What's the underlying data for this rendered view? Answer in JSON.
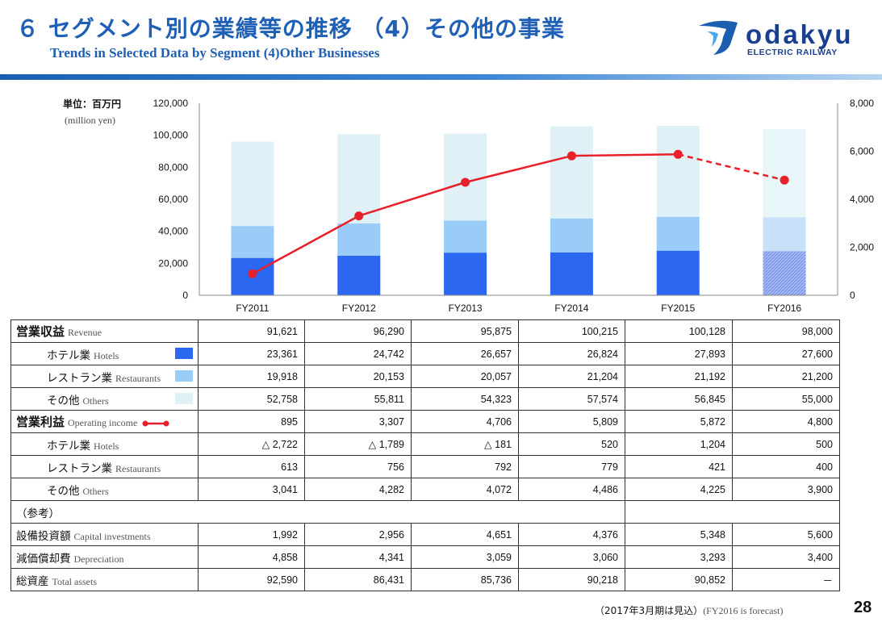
{
  "header": {
    "title_jp": "６ セグメント別の業績等の推移 （4）その他の事業",
    "title_en": "Trends in Selected Data by Segment  (4)Other Businesses"
  },
  "logo": {
    "word": "odakyu",
    "sub": "ELECTRIC RAILWAY"
  },
  "unit": {
    "jp": "単位：百万円",
    "en": "(million yen)"
  },
  "colors": {
    "hotels": "#2b67f0",
    "restaurants": "#99ccf7",
    "others": "#dff0f6",
    "hotels_forecast": "#8fa6ec",
    "restaurants_forecast": "#c7e1f8",
    "others_forecast": "#e8f5f9",
    "line": "#e8202a",
    "accent": "#1f5fb5"
  },
  "chart_data": {
    "type": "bar",
    "stacked": true,
    "categories": [
      "FY2011",
      "FY2012",
      "FY2013",
      "FY2014",
      "FY2015",
      "FY2016"
    ],
    "series": [
      {
        "name": "Hotels",
        "axis": "left",
        "values": [
          23361,
          24742,
          26657,
          26824,
          27893,
          27600
        ]
      },
      {
        "name": "Restaurants",
        "axis": "left",
        "values": [
          19918,
          20153,
          20057,
          21204,
          21192,
          21200
        ]
      },
      {
        "name": "Others",
        "axis": "left",
        "values": [
          52758,
          55811,
          54323,
          57574,
          56845,
          55000
        ]
      },
      {
        "name": "Operating income",
        "type": "line",
        "axis": "right",
        "values": [
          895,
          3307,
          4706,
          5809,
          5872,
          4800
        ],
        "forecast_from_index": 5
      }
    ],
    "ylim": [
      0,
      120000
    ],
    "y_ticks": [
      "120,000",
      "100,000",
      "80,000",
      "60,000",
      "40,000",
      "20,000",
      "0"
    ],
    "y2lim": [
      0,
      8000
    ],
    "y2_ticks": [
      "8,000",
      "6,000",
      "4,000",
      "2,000",
      "0"
    ],
    "forecast_category": "FY2016"
  },
  "table": {
    "rows": [
      {
        "jp": "営業収益",
        "en": "Revenue",
        "values": [
          "91,621",
          "96,290",
          "95,875",
          "100,215",
          "100,128",
          "98,000"
        ]
      },
      {
        "jp": "ホテル業",
        "en": "Hotels",
        "values": [
          "23,361",
          "24,742",
          "26,657",
          "26,824",
          "27,893",
          "27,600"
        ]
      },
      {
        "jp": "レストラン業",
        "en": "Restaurants",
        "values": [
          "19,918",
          "20,153",
          "20,057",
          "21,204",
          "21,192",
          "21,200"
        ]
      },
      {
        "jp": "その他",
        "en": "Others",
        "values": [
          "52,758",
          "55,811",
          "54,323",
          "57,574",
          "56,845",
          "55,000"
        ]
      },
      {
        "jp": "営業利益",
        "en": "Operating income",
        "values": [
          "895",
          "3,307",
          "4,706",
          "5,809",
          "5,872",
          "4,800"
        ]
      },
      {
        "jp": "ホテル業",
        "en": "Hotels",
        "values": [
          "△ 2,722",
          "△ 1,789",
          "△ 181",
          "520",
          "1,204",
          "500"
        ]
      },
      {
        "jp": "レストラン業",
        "en": "Restaurants",
        "values": [
          "613",
          "756",
          "792",
          "779",
          "421",
          "400"
        ]
      },
      {
        "jp": "その他",
        "en": "Others",
        "values": [
          "3,041",
          "4,282",
          "4,072",
          "4,486",
          "4,225",
          "3,900"
        ]
      },
      {
        "jp": "（参考）"
      },
      {
        "jp": "設備投資額",
        "en": "Capital  investments",
        "values": [
          "1,992",
          "2,956",
          "4,651",
          "4,376",
          "5,348",
          "5,600"
        ]
      },
      {
        "jp": "減価償却費",
        "en": "Depreciation",
        "values": [
          "4,858",
          "4,341",
          "3,059",
          "3,060",
          "3,293",
          "3,400"
        ]
      },
      {
        "jp": "総資産",
        "en": "Total assets",
        "values": [
          "92,590",
          "86,431",
          "85,736",
          "90,218",
          "90,852",
          "－"
        ]
      }
    ]
  },
  "footnote": {
    "jp": "（2017年3月期は見込）",
    "en": "(FY2016 is forecast)"
  },
  "page_number": "28"
}
